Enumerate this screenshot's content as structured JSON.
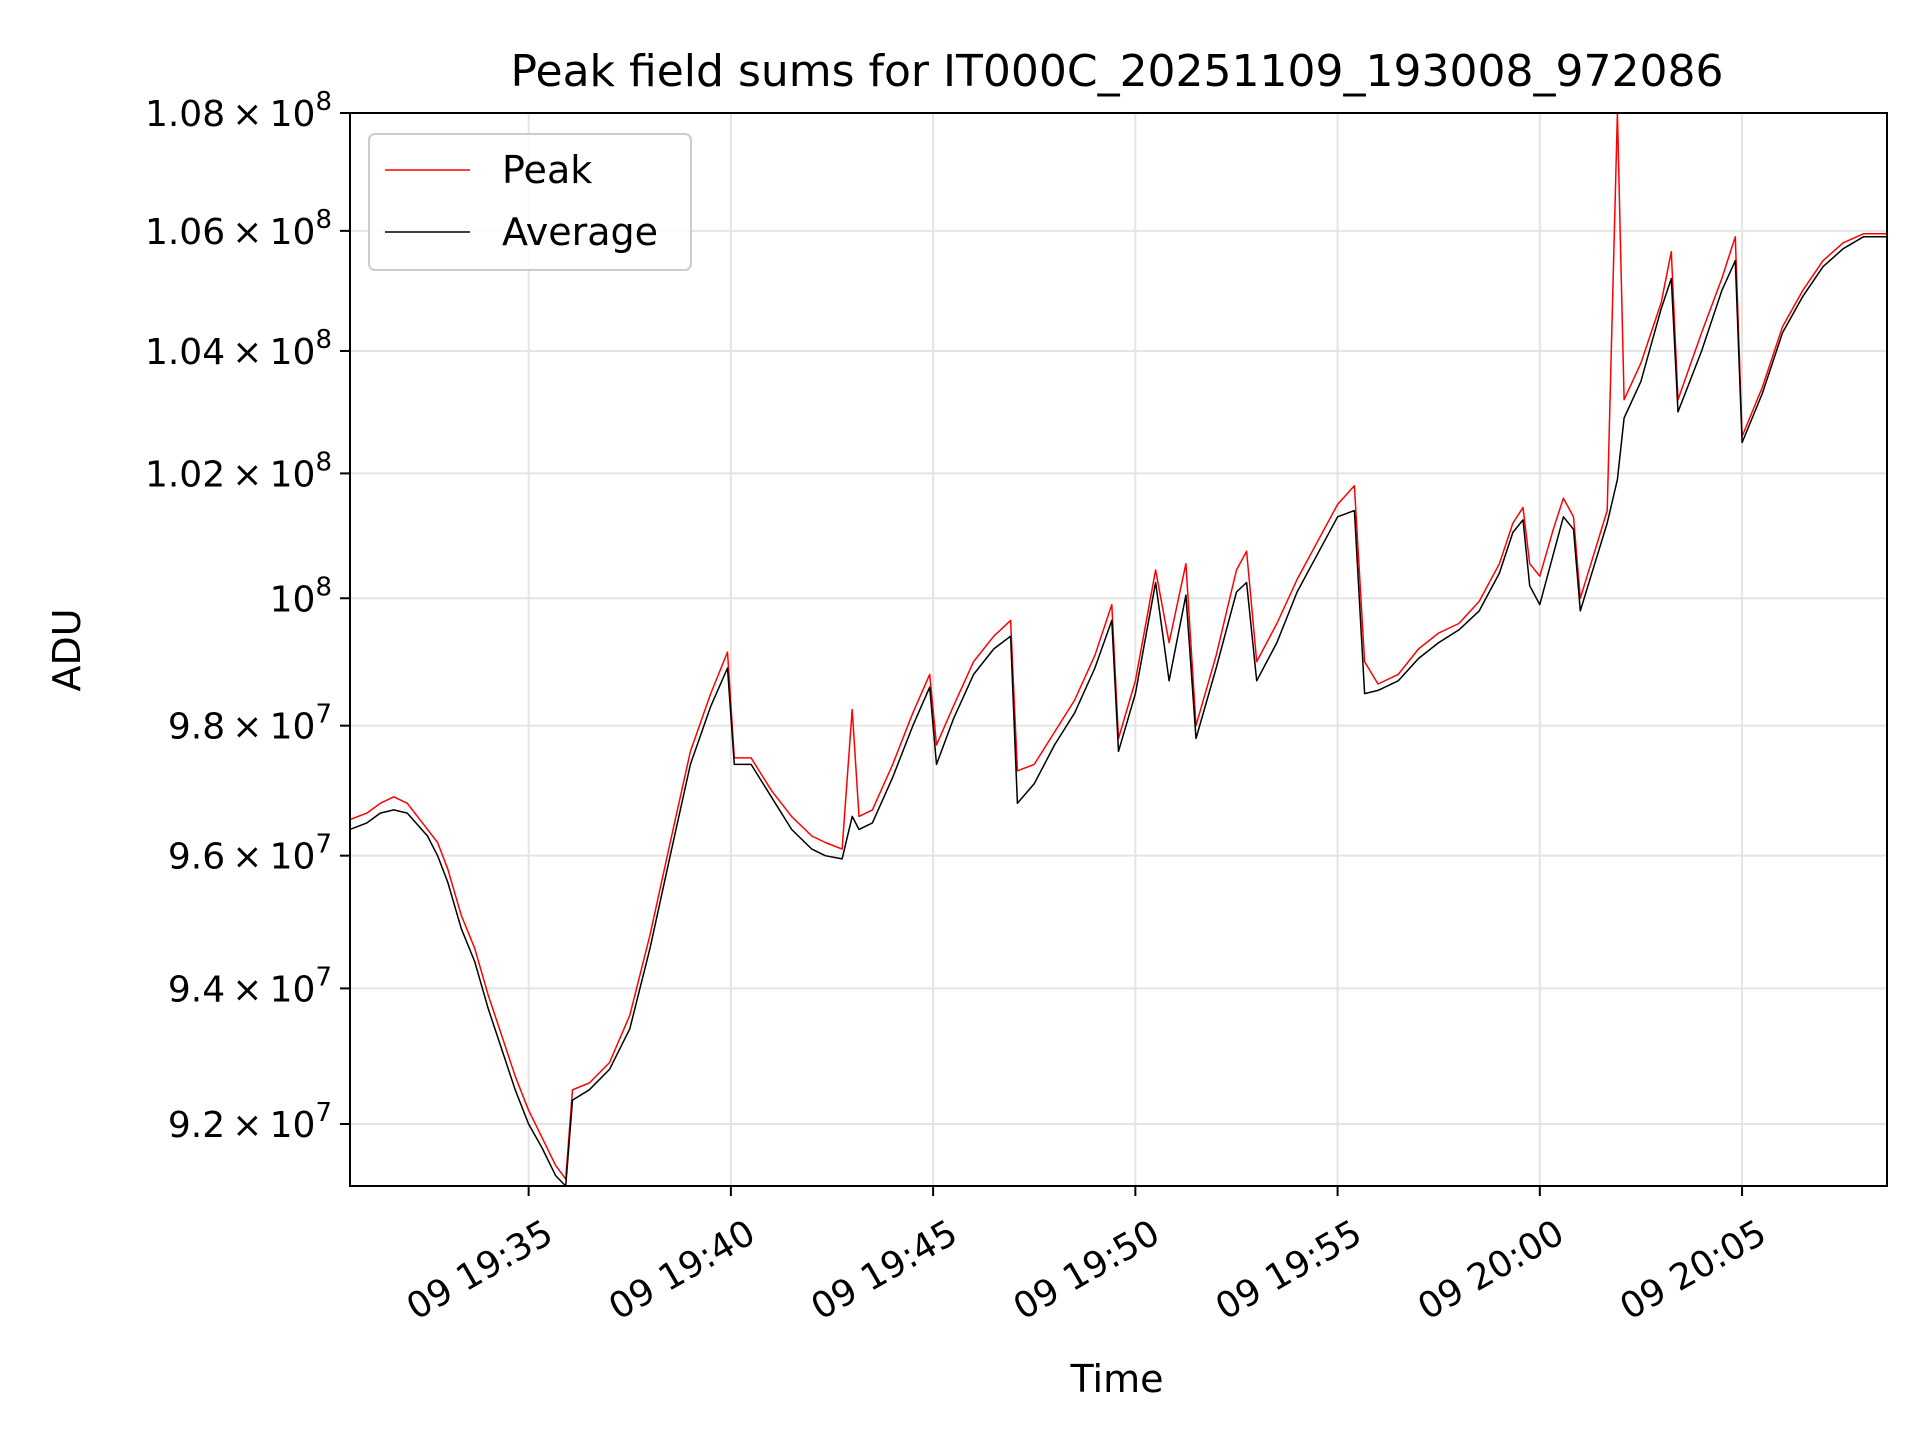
{
  "chart_data": {
    "type": "line",
    "title": "Peak field sums for IT000C_20251109_193008_972086",
    "xlabel": "Time",
    "ylabel": "ADU",
    "y_scale": "log",
    "grid": true,
    "legend_position": "top-left",
    "xlim": [
      "2025-11-09 19:30:35",
      "2025-11-09 20:08:35"
    ],
    "ylim": [
      91100000,
      108000000
    ],
    "x_ticks": [
      {
        "value": "2025-11-09 19:35:00",
        "label": "09 19:35"
      },
      {
        "value": "2025-11-09 19:40:00",
        "label": "09 19:40"
      },
      {
        "value": "2025-11-09 19:45:00",
        "label": "09 19:45"
      },
      {
        "value": "2025-11-09 19:50:00",
        "label": "09 19:50"
      },
      {
        "value": "2025-11-09 19:55:00",
        "label": "09 19:55"
      },
      {
        "value": "2025-11-09 20:00:00",
        "label": "09 20:00"
      },
      {
        "value": "2025-11-09 20:05:00",
        "label": "09 20:05"
      }
    ],
    "y_ticks": [
      {
        "value": 92000000,
        "mantissa": "9.2",
        "exponent": "7"
      },
      {
        "value": 94000000,
        "mantissa": "9.4",
        "exponent": "7"
      },
      {
        "value": 96000000,
        "mantissa": "9.6",
        "exponent": "7"
      },
      {
        "value": 98000000,
        "mantissa": "9.8",
        "exponent": "7"
      },
      {
        "value": 100000000,
        "mantissa": "",
        "exponent": "8"
      },
      {
        "value": 102000000,
        "mantissa": "1.02",
        "exponent": "8"
      },
      {
        "value": 104000000,
        "mantissa": "1.04",
        "exponent": "8"
      },
      {
        "value": 106000000,
        "mantissa": "1.06",
        "exponent": "8"
      },
      {
        "value": 108000000,
        "mantissa": "1.08",
        "exponent": "8"
      }
    ],
    "series": [
      {
        "name": "Peak",
        "color": "#ff0000",
        "points": [
          [
            "2025-11-09 19:30:35",
            96550000
          ],
          [
            "2025-11-09 19:31:00",
            96650000
          ],
          [
            "2025-11-09 19:31:20",
            96800000
          ],
          [
            "2025-11-09 19:31:40",
            96900000
          ],
          [
            "2025-11-09 19:32:00",
            96800000
          ],
          [
            "2025-11-09 19:32:30",
            96400000
          ],
          [
            "2025-11-09 19:32:45",
            96200000
          ],
          [
            "2025-11-09 19:33:00",
            95800000
          ],
          [
            "2025-11-09 19:33:20",
            95100000
          ],
          [
            "2025-11-09 19:33:40",
            94600000
          ],
          [
            "2025-11-09 19:34:00",
            93900000
          ],
          [
            "2025-11-09 19:34:20",
            93300000
          ],
          [
            "2025-11-09 19:34:40",
            92700000
          ],
          [
            "2025-11-09 19:35:00",
            92200000
          ],
          [
            "2025-11-09 19:35:20",
            91800000
          ],
          [
            "2025-11-09 19:35:40",
            91400000
          ],
          [
            "2025-11-09 19:35:55",
            91200000
          ],
          [
            "2025-11-09 19:36:05",
            92500000
          ],
          [
            "2025-11-09 19:36:30",
            92600000
          ],
          [
            "2025-11-09 19:37:00",
            92900000
          ],
          [
            "2025-11-09 19:37:30",
            93600000
          ],
          [
            "2025-11-09 19:38:00",
            94800000
          ],
          [
            "2025-11-09 19:38:30",
            96200000
          ],
          [
            "2025-11-09 19:39:00",
            97600000
          ],
          [
            "2025-11-09 19:39:30",
            98500000
          ],
          [
            "2025-11-09 19:39:55",
            99150000
          ],
          [
            "2025-11-09 19:40:05",
            97500000
          ],
          [
            "2025-11-09 19:40:30",
            97500000
          ],
          [
            "2025-11-09 19:41:00",
            97000000
          ],
          [
            "2025-11-09 19:41:30",
            96600000
          ],
          [
            "2025-11-09 19:42:00",
            96300000
          ],
          [
            "2025-11-09 19:42:20",
            96200000
          ],
          [
            "2025-11-09 19:42:45",
            96100000
          ],
          [
            "2025-11-09 19:43:00",
            98250000
          ],
          [
            "2025-11-09 19:43:10",
            96600000
          ],
          [
            "2025-11-09 19:43:30",
            96700000
          ],
          [
            "2025-11-09 19:44:00",
            97400000
          ],
          [
            "2025-11-09 19:44:30",
            98200000
          ],
          [
            "2025-11-09 19:44:55",
            98800000
          ],
          [
            "2025-11-09 19:45:05",
            97700000
          ],
          [
            "2025-11-09 19:45:30",
            98300000
          ],
          [
            "2025-11-09 19:46:00",
            99000000
          ],
          [
            "2025-11-09 19:46:30",
            99400000
          ],
          [
            "2025-11-09 19:46:55",
            99650000
          ],
          [
            "2025-11-09 19:47:05",
            97300000
          ],
          [
            "2025-11-09 19:47:30",
            97400000
          ],
          [
            "2025-11-09 19:48:00",
            97900000
          ],
          [
            "2025-11-09 19:48:30",
            98400000
          ],
          [
            "2025-11-09 19:49:00",
            99100000
          ],
          [
            "2025-11-09 19:49:25",
            99900000
          ],
          [
            "2025-11-09 19:49:35",
            97800000
          ],
          [
            "2025-11-09 19:50:00",
            98700000
          ],
          [
            "2025-11-09 19:50:30",
            100450000
          ],
          [
            "2025-11-09 19:50:50",
            99300000
          ],
          [
            "2025-11-09 19:51:15",
            100550000
          ],
          [
            "2025-11-09 19:51:30",
            98000000
          ],
          [
            "2025-11-09 19:52:00",
            99100000
          ],
          [
            "2025-11-09 19:52:30",
            100450000
          ],
          [
            "2025-11-09 19:52:45",
            100750000
          ],
          [
            "2025-11-09 19:53:00",
            99000000
          ],
          [
            "2025-11-09 19:53:30",
            99600000
          ],
          [
            "2025-11-09 19:54:00",
            100300000
          ],
          [
            "2025-11-09 19:54:30",
            100900000
          ],
          [
            "2025-11-09 19:55:00",
            101500000
          ],
          [
            "2025-11-09 19:55:25",
            101800000
          ],
          [
            "2025-11-09 19:55:40",
            99000000
          ],
          [
            "2025-11-09 19:56:00",
            98650000
          ],
          [
            "2025-11-09 19:56:30",
            98800000
          ],
          [
            "2025-11-09 19:57:00",
            99200000
          ],
          [
            "2025-11-09 19:57:30",
            99450000
          ],
          [
            "2025-11-09 19:58:00",
            99600000
          ],
          [
            "2025-11-09 19:58:30",
            99950000
          ],
          [
            "2025-11-09 19:59:00",
            100550000
          ],
          [
            "2025-11-09 19:59:20",
            101200000
          ],
          [
            "2025-11-09 19:59:35",
            101450000
          ],
          [
            "2025-11-09 19:59:45",
            100550000
          ],
          [
            "2025-11-09 20:00:00",
            100350000
          ],
          [
            "2025-11-09 20:00:20",
            101100000
          ],
          [
            "2025-11-09 20:00:35",
            101600000
          ],
          [
            "2025-11-09 20:00:50",
            101300000
          ],
          [
            "2025-11-09 20:01:00",
            100000000
          ],
          [
            "2025-11-09 20:01:20",
            100700000
          ],
          [
            "2025-11-09 20:01:40",
            101400000
          ],
          [
            "2025-11-09 20:01:55",
            108000000
          ],
          [
            "2025-11-09 20:02:05",
            103200000
          ],
          [
            "2025-11-09 20:02:30",
            103800000
          ],
          [
            "2025-11-09 20:03:00",
            104800000
          ],
          [
            "2025-11-09 20:03:15",
            105650000
          ],
          [
            "2025-11-09 20:03:25",
            103200000
          ],
          [
            "2025-11-09 20:04:00",
            104300000
          ],
          [
            "2025-11-09 20:04:30",
            105200000
          ],
          [
            "2025-11-09 20:04:50",
            105900000
          ],
          [
            "2025-11-09 20:05:00",
            102600000
          ],
          [
            "2025-11-09 20:05:30",
            103400000
          ],
          [
            "2025-11-09 20:06:00",
            104400000
          ],
          [
            "2025-11-09 20:06:30",
            105000000
          ],
          [
            "2025-11-09 20:07:00",
            105500000
          ],
          [
            "2025-11-09 20:07:30",
            105800000
          ],
          [
            "2025-11-09 20:08:00",
            105950000
          ],
          [
            "2025-11-09 20:08:35",
            105950000
          ]
        ]
      },
      {
        "name": "Average",
        "color": "#000000",
        "points": [
          [
            "2025-11-09 19:30:35",
            96400000
          ],
          [
            "2025-11-09 19:31:00",
            96500000
          ],
          [
            "2025-11-09 19:31:20",
            96650000
          ],
          [
            "2025-11-09 19:31:40",
            96700000
          ],
          [
            "2025-11-09 19:32:00",
            96650000
          ],
          [
            "2025-11-09 19:32:30",
            96300000
          ],
          [
            "2025-11-09 19:32:45",
            96000000
          ],
          [
            "2025-11-09 19:33:00",
            95600000
          ],
          [
            "2025-11-09 19:33:20",
            94900000
          ],
          [
            "2025-11-09 19:33:40",
            94400000
          ],
          [
            "2025-11-09 19:34:00",
            93700000
          ],
          [
            "2025-11-09 19:34:20",
            93100000
          ],
          [
            "2025-11-09 19:34:40",
            92500000
          ],
          [
            "2025-11-09 19:35:00",
            92000000
          ],
          [
            "2025-11-09 19:35:20",
            91650000
          ],
          [
            "2025-11-09 19:35:40",
            91250000
          ],
          [
            "2025-11-09 19:35:55",
            91100000
          ],
          [
            "2025-11-09 19:36:05",
            92350000
          ],
          [
            "2025-11-09 19:36:30",
            92500000
          ],
          [
            "2025-11-09 19:37:00",
            92800000
          ],
          [
            "2025-11-09 19:37:30",
            93400000
          ],
          [
            "2025-11-09 19:38:00",
            94600000
          ],
          [
            "2025-11-09 19:38:30",
            96000000
          ],
          [
            "2025-11-09 19:39:00",
            97400000
          ],
          [
            "2025-11-09 19:39:30",
            98300000
          ],
          [
            "2025-11-09 19:39:55",
            98900000
          ],
          [
            "2025-11-09 19:40:05",
            97400000
          ],
          [
            "2025-11-09 19:40:30",
            97400000
          ],
          [
            "2025-11-09 19:41:00",
            96900000
          ],
          [
            "2025-11-09 19:41:30",
            96400000
          ],
          [
            "2025-11-09 19:42:00",
            96100000
          ],
          [
            "2025-11-09 19:42:20",
            96000000
          ],
          [
            "2025-11-09 19:42:45",
            95950000
          ],
          [
            "2025-11-09 19:43:00",
            96600000
          ],
          [
            "2025-11-09 19:43:10",
            96400000
          ],
          [
            "2025-11-09 19:43:30",
            96500000
          ],
          [
            "2025-11-09 19:44:00",
            97200000
          ],
          [
            "2025-11-09 19:44:30",
            98000000
          ],
          [
            "2025-11-09 19:44:55",
            98600000
          ],
          [
            "2025-11-09 19:45:05",
            97400000
          ],
          [
            "2025-11-09 19:45:30",
            98100000
          ],
          [
            "2025-11-09 19:46:00",
            98800000
          ],
          [
            "2025-11-09 19:46:30",
            99200000
          ],
          [
            "2025-11-09 19:46:55",
            99400000
          ],
          [
            "2025-11-09 19:47:05",
            96800000
          ],
          [
            "2025-11-09 19:47:30",
            97100000
          ],
          [
            "2025-11-09 19:48:00",
            97700000
          ],
          [
            "2025-11-09 19:48:30",
            98200000
          ],
          [
            "2025-11-09 19:49:00",
            98900000
          ],
          [
            "2025-11-09 19:49:25",
            99650000
          ],
          [
            "2025-11-09 19:49:35",
            97600000
          ],
          [
            "2025-11-09 19:50:00",
            98500000
          ],
          [
            "2025-11-09 19:50:30",
            100250000
          ],
          [
            "2025-11-09 19:50:50",
            98700000
          ],
          [
            "2025-11-09 19:51:15",
            100050000
          ],
          [
            "2025-11-09 19:51:30",
            97800000
          ],
          [
            "2025-11-09 19:52:00",
            98900000
          ],
          [
            "2025-11-09 19:52:30",
            100100000
          ],
          [
            "2025-11-09 19:52:45",
            100250000
          ],
          [
            "2025-11-09 19:53:00",
            98700000
          ],
          [
            "2025-11-09 19:53:30",
            99300000
          ],
          [
            "2025-11-09 19:54:00",
            100100000
          ],
          [
            "2025-11-09 19:54:30",
            100700000
          ],
          [
            "2025-11-09 19:55:00",
            101300000
          ],
          [
            "2025-11-09 19:55:25",
            101400000
          ],
          [
            "2025-11-09 19:55:40",
            98500000
          ],
          [
            "2025-11-09 19:56:00",
            98550000
          ],
          [
            "2025-11-09 19:56:30",
            98700000
          ],
          [
            "2025-11-09 19:57:00",
            99050000
          ],
          [
            "2025-11-09 19:57:30",
            99300000
          ],
          [
            "2025-11-09 19:58:00",
            99500000
          ],
          [
            "2025-11-09 19:58:30",
            99800000
          ],
          [
            "2025-11-09 19:59:00",
            100400000
          ],
          [
            "2025-11-09 19:59:20",
            101050000
          ],
          [
            "2025-11-09 19:59:35",
            101250000
          ],
          [
            "2025-11-09 19:59:45",
            100200000
          ],
          [
            "2025-11-09 20:00:00",
            99900000
          ],
          [
            "2025-11-09 20:00:20",
            100700000
          ],
          [
            "2025-11-09 20:00:35",
            101300000
          ],
          [
            "2025-11-09 20:00:50",
            101100000
          ],
          [
            "2025-11-09 20:01:00",
            99800000
          ],
          [
            "2025-11-09 20:01:20",
            100500000
          ],
          [
            "2025-11-09 20:01:40",
            101200000
          ],
          [
            "2025-11-09 20:01:55",
            101900000
          ],
          [
            "2025-11-09 20:02:05",
            102900000
          ],
          [
            "2025-11-09 20:02:30",
            103500000
          ],
          [
            "2025-11-09 20:03:00",
            104700000
          ],
          [
            "2025-11-09 20:03:15",
            105200000
          ],
          [
            "2025-11-09 20:03:25",
            103000000
          ],
          [
            "2025-11-09 20:04:00",
            104000000
          ],
          [
            "2025-11-09 20:04:30",
            105000000
          ],
          [
            "2025-11-09 20:04:50",
            105500000
          ],
          [
            "2025-11-09 20:05:00",
            102500000
          ],
          [
            "2025-11-09 20:05:30",
            103300000
          ],
          [
            "2025-11-09 20:06:00",
            104300000
          ],
          [
            "2025-11-09 20:06:30",
            104900000
          ],
          [
            "2025-11-09 20:07:00",
            105400000
          ],
          [
            "2025-11-09 20:07:30",
            105700000
          ],
          [
            "2025-11-09 20:08:00",
            105900000
          ],
          [
            "2025-11-09 20:08:35",
            105900000
          ]
        ]
      }
    ]
  }
}
